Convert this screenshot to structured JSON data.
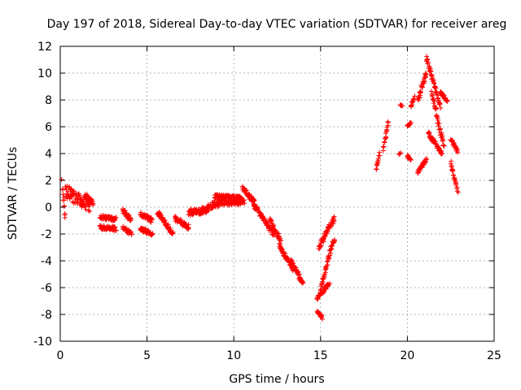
{
  "chart_data": {
    "type": "scatter",
    "title": "Day 197 of 2018, Sidereal Day-to-day VTEC variation (SDTVAR) for receiver areg",
    "xlabel": "GPS time / hours",
    "ylabel": "SDTVAR / TECUs",
    "xlim": [
      0,
      25
    ],
    "ylim": [
      -10,
      12
    ],
    "xticks": [
      0,
      5,
      10,
      15,
      20,
      25
    ],
    "yticks": [
      -10,
      -8,
      -6,
      -4,
      -2,
      0,
      2,
      4,
      6,
      8,
      10,
      12
    ],
    "xtick_labels": [
      "0",
      "5",
      "10",
      "15",
      "20",
      "25"
    ],
    "ytick_labels": [
      "-10",
      "-8",
      "-6",
      "-4",
      "-2",
      "0",
      "2",
      "4",
      "6",
      "8",
      "10",
      "12"
    ],
    "grid": true,
    "marker": "+",
    "color": "#ff0000",
    "series": [
      {
        "name": "SDTVAR",
        "segments": [
          [
            0.1,
            0.3,
            1.7,
            -0.6,
            0.9
          ],
          [
            0.3,
            1.7,
            1.2,
            0.1,
            1.0
          ],
          [
            1.4,
            1.9,
            0.9,
            0.3,
            0.4
          ],
          [
            2.3,
            3.2,
            -0.7,
            -0.9,
            0.3
          ],
          [
            2.3,
            3.2,
            -1.5,
            -1.6,
            0.3
          ],
          [
            3.6,
            4.1,
            -0.2,
            -1.0,
            0.4
          ],
          [
            3.6,
            4.1,
            -1.5,
            -2.0,
            0.3
          ],
          [
            4.6,
            5.3,
            -0.5,
            -1.0,
            0.4
          ],
          [
            4.6,
            5.3,
            -1.6,
            -2.0,
            0.3
          ],
          [
            5.6,
            6.5,
            -0.4,
            -2.0,
            0.4
          ],
          [
            6.6,
            7.4,
            -0.8,
            -1.5,
            0.4
          ],
          [
            7.4,
            8.5,
            -0.4,
            -0.2,
            0.5
          ],
          [
            8.5,
            9.6,
            0.0,
            0.5,
            0.5
          ],
          [
            8.9,
            10.4,
            0.8,
            0.7,
            0.3
          ],
          [
            9.6,
            10.6,
            0.3,
            0.4,
            0.4
          ],
          [
            10.5,
            11.2,
            1.4,
            0.4,
            0.4
          ],
          [
            11.1,
            12.3,
            0.3,
            -2.0,
            0.4
          ],
          [
            12.1,
            12.7,
            -1.0,
            -2.5,
            0.4
          ],
          [
            12.6,
            13.4,
            -2.8,
            -4.6,
            0.4
          ],
          [
            13.3,
            14.0,
            -4.0,
            -5.8,
            0.4
          ],
          [
            14.8,
            15.1,
            -7.8,
            -8.2,
            0.3
          ],
          [
            14.8,
            15.5,
            -6.8,
            -5.7,
            0.3
          ],
          [
            15.0,
            15.8,
            -6.0,
            -2.2,
            0.5
          ],
          [
            14.9,
            15.8,
            -3.0,
            -0.8,
            0.5
          ],
          [
            18.2,
            18.4,
            2.8,
            4.0,
            0.2
          ],
          [
            18.6,
            18.9,
            4.3,
            6.3,
            0.3
          ],
          [
            19.6,
            19.7,
            7.6,
            7.6,
            0.1
          ],
          [
            19.5,
            19.6,
            4.0,
            4.0,
            0.1
          ],
          [
            20.0,
            20.2,
            3.8,
            3.6,
            0.2
          ],
          [
            20.0,
            20.2,
            6.0,
            6.3,
            0.2
          ],
          [
            20.2,
            20.4,
            7.5,
            8.2,
            0.2
          ],
          [
            20.6,
            21.1,
            2.6,
            3.6,
            0.3
          ],
          [
            20.6,
            21.1,
            8.0,
            10.0,
            0.4
          ],
          [
            21.1,
            21.9,
            11.2,
            7.5,
            0.4
          ],
          [
            21.4,
            22.1,
            8.5,
            4.5,
            0.4
          ],
          [
            21.2,
            22.0,
            5.5,
            4.0,
            0.3
          ],
          [
            21.9,
            22.3,
            8.6,
            7.9,
            0.2
          ],
          [
            22.5,
            22.9,
            5.0,
            4.2,
            0.3
          ],
          [
            22.5,
            22.9,
            3.3,
            1.2,
            0.3
          ]
        ]
      }
    ]
  }
}
